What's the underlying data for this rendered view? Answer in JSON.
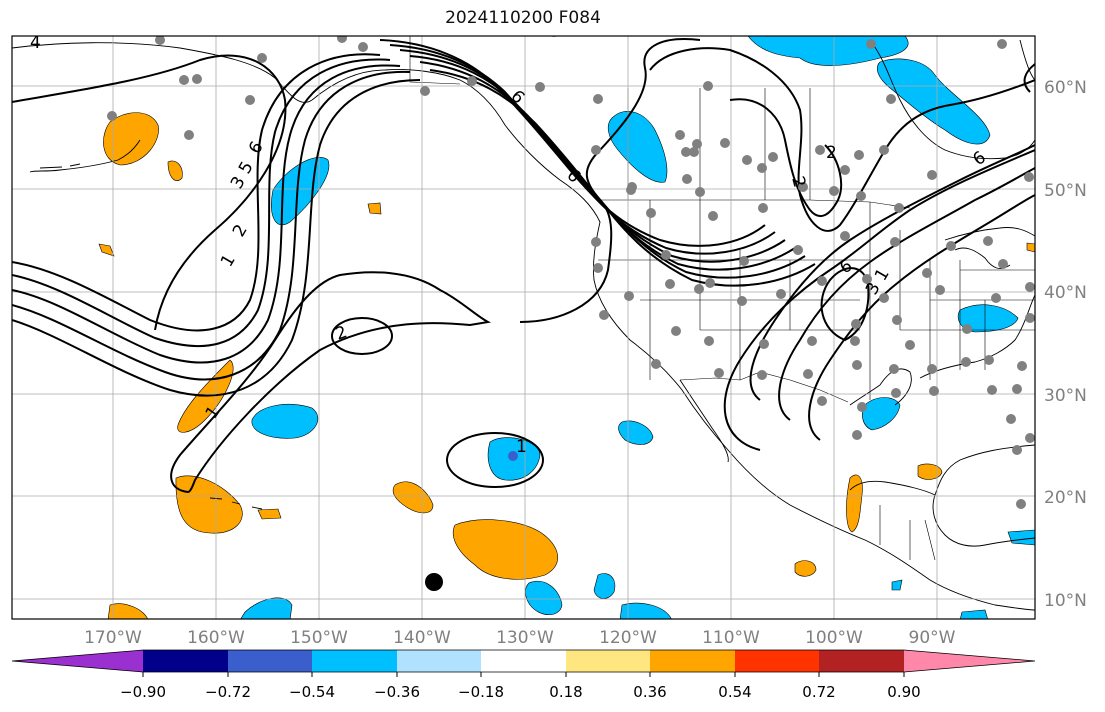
{
  "title": "2024110200 F084",
  "lon_labels": [
    "170°W",
    "160°W",
    "150°W",
    "140°W",
    "130°W",
    "120°W",
    "110°W",
    "100°W",
    "90°W"
  ],
  "lat_labels": [
    "60°N",
    "50°N",
    "40°N",
    "30°N",
    "20°N",
    "10°N"
  ],
  "colorbar": {
    "tick_labels": [
      "−0.90",
      "−0.72",
      "−0.54",
      "−0.36",
      "−0.18",
      "0.18",
      "0.36",
      "0.54",
      "0.72",
      "0.90"
    ],
    "colors": [
      "#9b30d0",
      "#00008b",
      "#3a5fcd",
      "#00bfff",
      "#b0e2ff",
      "#ffffff",
      "#ffe680",
      "#ffa500",
      "#ff3300",
      "#b22222",
      "#ff88aa"
    ]
  },
  "contour_labels": [
    "4",
    "1",
    "2",
    "3",
    "5",
    "6",
    "6",
    "6",
    "2",
    "2",
    "1",
    "3",
    "6",
    "1",
    "1",
    "2",
    "6"
  ],
  "colors": {
    "positive_fill": "#ffa500",
    "negative_fill": "#00bfff",
    "station_dot": "#808080",
    "grid": "#aaaaaa",
    "axis_label": "#808080"
  }
}
